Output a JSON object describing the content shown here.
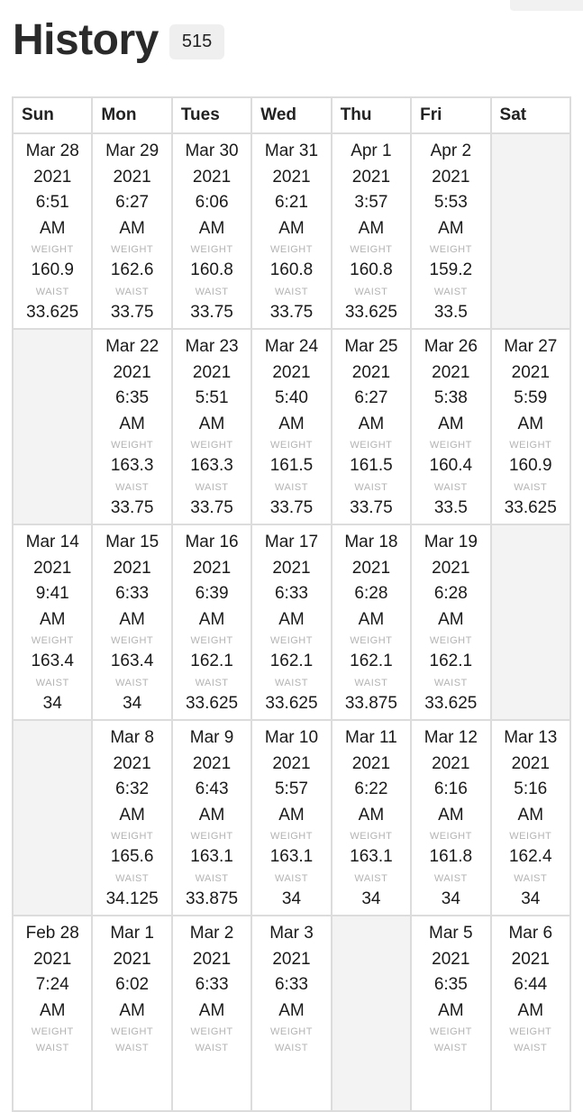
{
  "header": {
    "title": "History",
    "count": "515"
  },
  "labels": {
    "weight": "WEIGHT",
    "waist": "WAIST"
  },
  "days": [
    "Sun",
    "Mon",
    "Tues",
    "Wed",
    "Thu",
    "Fri",
    "Sat"
  ],
  "weeks": [
    [
      {
        "date": "Mar 28",
        "year": "2021",
        "time": "6:51",
        "ampm": "AM",
        "weight": "160.9",
        "waist": "33.625"
      },
      {
        "date": "Mar 29",
        "year": "2021",
        "time": "6:27",
        "ampm": "AM",
        "weight": "162.6",
        "waist": "33.75"
      },
      {
        "date": "Mar 30",
        "year": "2021",
        "time": "6:06",
        "ampm": "AM",
        "weight": "160.8",
        "waist": "33.75"
      },
      {
        "date": "Mar 31",
        "year": "2021",
        "time": "6:21",
        "ampm": "AM",
        "weight": "160.8",
        "waist": "33.75"
      },
      {
        "date": "Apr 1",
        "year": "2021",
        "time": "3:57",
        "ampm": "AM",
        "weight": "160.8",
        "waist": "33.625"
      },
      {
        "date": "Apr 2",
        "year": "2021",
        "time": "5:53",
        "ampm": "AM",
        "weight": "159.2",
        "waist": "33.5"
      },
      null
    ],
    [
      null,
      {
        "date": "Mar 22",
        "year": "2021",
        "time": "6:35",
        "ampm": "AM",
        "weight": "163.3",
        "waist": "33.75"
      },
      {
        "date": "Mar 23",
        "year": "2021",
        "time": "5:51",
        "ampm": "AM",
        "weight": "163.3",
        "waist": "33.75"
      },
      {
        "date": "Mar 24",
        "year": "2021",
        "time": "5:40",
        "ampm": "AM",
        "weight": "161.5",
        "waist": "33.75"
      },
      {
        "date": "Mar 25",
        "year": "2021",
        "time": "6:27",
        "ampm": "AM",
        "weight": "161.5",
        "waist": "33.75"
      },
      {
        "date": "Mar 26",
        "year": "2021",
        "time": "5:38",
        "ampm": "AM",
        "weight": "160.4",
        "waist": "33.5"
      },
      {
        "date": "Mar 27",
        "year": "2021",
        "time": "5:59",
        "ampm": "AM",
        "weight": "160.9",
        "waist": "33.625"
      }
    ],
    [
      {
        "date": "Mar 14",
        "year": "2021",
        "time": "9:41",
        "ampm": "AM",
        "weight": "163.4",
        "waist": "34"
      },
      {
        "date": "Mar 15",
        "year": "2021",
        "time": "6:33",
        "ampm": "AM",
        "weight": "163.4",
        "waist": "34"
      },
      {
        "date": "Mar 16",
        "year": "2021",
        "time": "6:39",
        "ampm": "AM",
        "weight": "162.1",
        "waist": "33.625"
      },
      {
        "date": "Mar 17",
        "year": "2021",
        "time": "6:33",
        "ampm": "AM",
        "weight": "162.1",
        "waist": "33.625"
      },
      {
        "date": "Mar 18",
        "year": "2021",
        "time": "6:28",
        "ampm": "AM",
        "weight": "162.1",
        "waist": "33.875"
      },
      {
        "date": "Mar 19",
        "year": "2021",
        "time": "6:28",
        "ampm": "AM",
        "weight": "162.1",
        "waist": "33.625"
      },
      null
    ],
    [
      null,
      {
        "date": "Mar 8",
        "year": "2021",
        "time": "6:32",
        "ampm": "AM",
        "weight": "165.6",
        "waist": "34.125"
      },
      {
        "date": "Mar 9",
        "year": "2021",
        "time": "6:43",
        "ampm": "AM",
        "weight": "163.1",
        "waist": "33.875"
      },
      {
        "date": "Mar 10",
        "year": "2021",
        "time": "5:57",
        "ampm": "AM",
        "weight": "163.1",
        "waist": "34"
      },
      {
        "date": "Mar 11",
        "year": "2021",
        "time": "6:22",
        "ampm": "AM",
        "weight": "163.1",
        "waist": "34"
      },
      {
        "date": "Mar 12",
        "year": "2021",
        "time": "6:16",
        "ampm": "AM",
        "weight": "161.8",
        "waist": "34"
      },
      {
        "date": "Mar 13",
        "year": "2021",
        "time": "5:16",
        "ampm": "AM",
        "weight": "162.4",
        "waist": "34"
      }
    ],
    [
      {
        "date": "Feb 28",
        "year": "2021",
        "time": "7:24",
        "ampm": "AM",
        "weight": "",
        "waist": ""
      },
      {
        "date": "Mar 1",
        "year": "2021",
        "time": "6:02",
        "ampm": "AM",
        "weight": "",
        "waist": ""
      },
      {
        "date": "Mar 2",
        "year": "2021",
        "time": "6:33",
        "ampm": "AM",
        "weight": "",
        "waist": ""
      },
      {
        "date": "Mar 3",
        "year": "2021",
        "time": "6:33",
        "ampm": "AM",
        "weight": "",
        "waist": ""
      },
      null,
      {
        "date": "Mar 5",
        "year": "2021",
        "time": "6:35",
        "ampm": "AM",
        "weight": "",
        "waist": ""
      },
      {
        "date": "Mar 6",
        "year": "2021",
        "time": "6:44",
        "ampm": "AM",
        "weight": "",
        "waist": ""
      }
    ]
  ]
}
